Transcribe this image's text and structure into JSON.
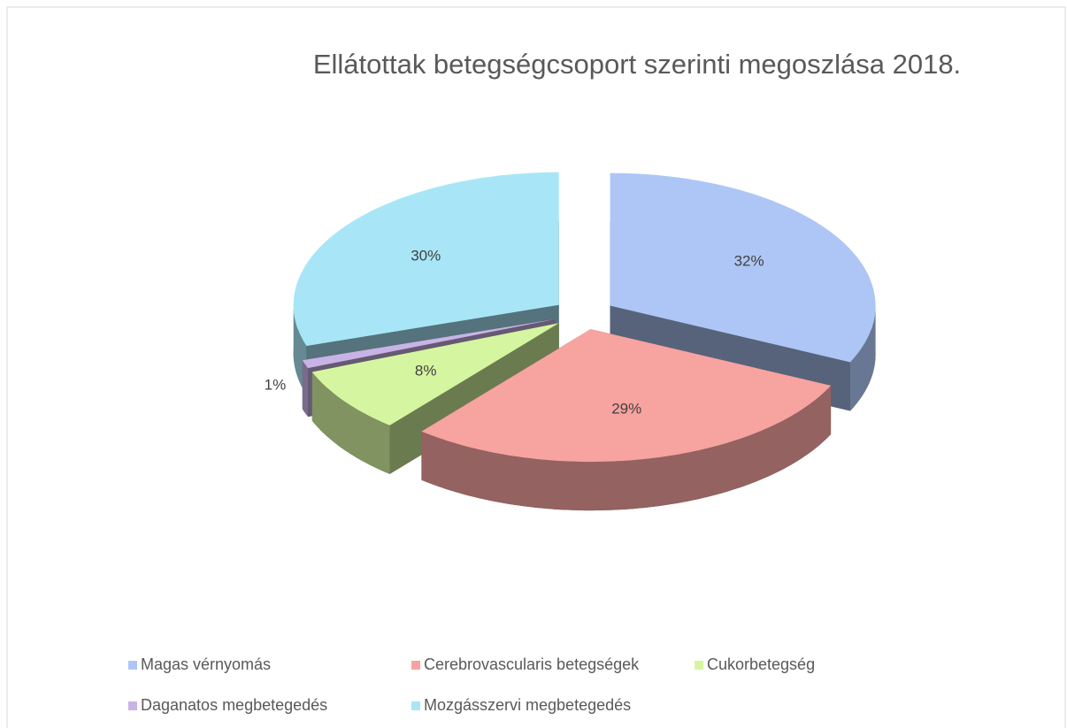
{
  "chart_data": {
    "type": "pie",
    "title": "Ellátottak betegségcsoport szerinti megoszlása 2018.",
    "categories": [
      "Magas vérnyomás",
      "Cerebrovascularis betegségek",
      "Cukorbetegség",
      "Daganatos megbetegedés",
      "Mozgásszervi megbetegedés"
    ],
    "values": [
      32,
      29,
      8,
      1,
      30
    ],
    "value_labels": [
      "32%",
      "29%",
      "8%",
      "1%",
      "30%"
    ],
    "colors": [
      "#aec6f5",
      "#f7a3a0",
      "#d6f5a0",
      "#c9b3e6",
      "#a8e6f7"
    ],
    "legend": "bottom"
  }
}
